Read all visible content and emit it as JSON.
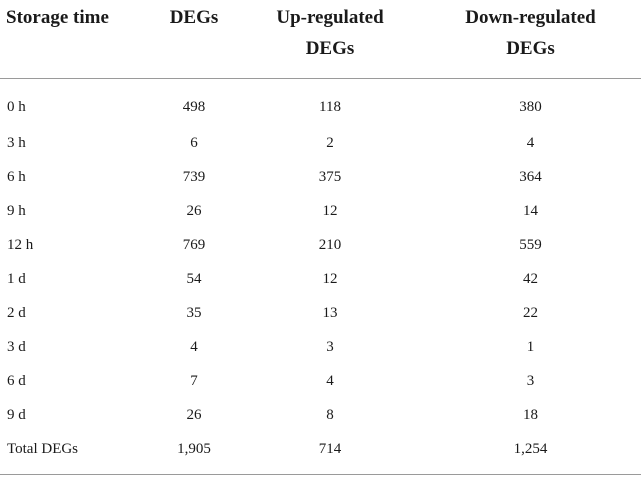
{
  "table": {
    "headers": [
      {
        "line1": "Storage time",
        "line2": ""
      },
      {
        "line1": "DEGs",
        "line2": ""
      },
      {
        "line1": "Up-regulated",
        "line2": "DEGs"
      },
      {
        "line1": "Down-regulated",
        "line2": "DEGs"
      }
    ],
    "rows": [
      [
        "0 h",
        "498",
        "118",
        "380"
      ],
      [
        "3 h",
        "6",
        "2",
        "4"
      ],
      [
        "6 h",
        "739",
        "375",
        "364"
      ],
      [
        "9 h",
        "26",
        "12",
        "14"
      ],
      [
        "12 h",
        "769",
        "210",
        "559"
      ],
      [
        "1 d",
        "54",
        "12",
        "42"
      ],
      [
        "2 d",
        "35",
        "13",
        "22"
      ],
      [
        "3 d",
        "4",
        "3",
        "1"
      ],
      [
        "6 d",
        "7",
        "4",
        "3"
      ],
      [
        "9 d",
        "26",
        "8",
        "18"
      ],
      [
        "Total DEGs",
        "1,905",
        "714",
        "1,254"
      ]
    ]
  }
}
